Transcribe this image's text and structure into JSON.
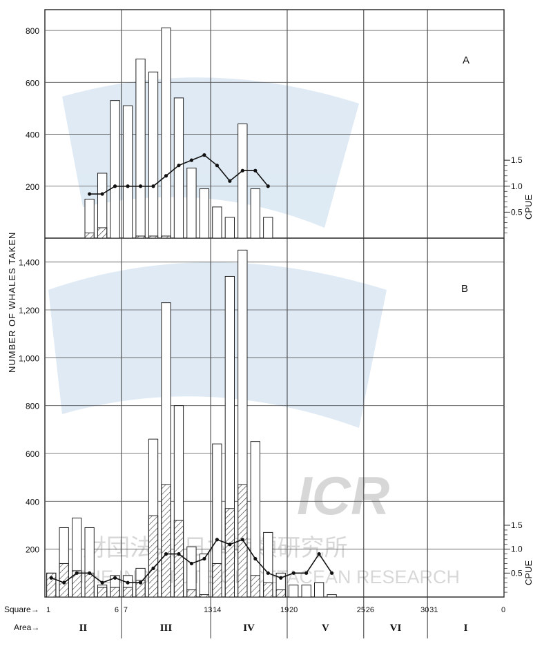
{
  "y_axis_label": "NUMBER OF WHALES TAKEN",
  "cpue_label": "CPUE",
  "square_label": "Square→",
  "area_label": "Area→",
  "watermark": {
    "logo_text": "ICR",
    "jp_text": "財団法人 日本鯨類研究所",
    "en_text": "THE INSTITUTE OF CETACEAN RESEARCH"
  },
  "chart_data": [
    {
      "type": "bar",
      "panel": "A",
      "squares": [
        1,
        2,
        3,
        4,
        5,
        6,
        7,
        8,
        9,
        10,
        11,
        12,
        13,
        14,
        15,
        16,
        17,
        18,
        19,
        20,
        21,
        22,
        23,
        24,
        25,
        26,
        27,
        28,
        29,
        30,
        31,
        32,
        33,
        34,
        35,
        36
      ],
      "series": [
        {
          "name": "total",
          "values": [
            0,
            0,
            0,
            150,
            250,
            530,
            510,
            690,
            640,
            810,
            540,
            270,
            190,
            120,
            80,
            440,
            190,
            80,
            0,
            0,
            0,
            0,
            0,
            0,
            0,
            0,
            0,
            0,
            0,
            0,
            0,
            0,
            0,
            0,
            0,
            0
          ]
        },
        {
          "name": "hatched",
          "values": [
            0,
            0,
            0,
            20,
            40,
            0,
            0,
            8,
            8,
            8,
            0,
            0,
            0,
            0,
            0,
            0,
            0,
            0,
            0,
            0,
            0,
            0,
            0,
            0,
            0,
            0,
            0,
            0,
            0,
            0,
            0,
            0,
            0,
            0,
            0,
            0
          ]
        }
      ],
      "cpue": [
        null,
        null,
        null,
        0.85,
        0.85,
        1.0,
        1.0,
        1.0,
        1.0,
        1.2,
        1.4,
        1.5,
        1.6,
        1.4,
        1.1,
        1.3,
        1.3,
        1.0,
        null,
        null,
        null,
        null,
        null,
        null,
        null,
        null,
        null,
        null,
        null,
        null,
        null,
        null,
        null,
        null,
        null,
        null
      ],
      "ylim": [
        0,
        880
      ],
      "yticks": [
        200,
        400,
        600,
        800
      ],
      "cpue_ticks": [
        "0.5",
        "1.0",
        "1.5"
      ]
    },
    {
      "type": "bar",
      "panel": "B",
      "squares": [
        1,
        2,
        3,
        4,
        5,
        6,
        7,
        8,
        9,
        10,
        11,
        12,
        13,
        14,
        15,
        16,
        17,
        18,
        19,
        20,
        21,
        22,
        23,
        24,
        25,
        26,
        27,
        28,
        29,
        30,
        31,
        32,
        33,
        34,
        35,
        36
      ],
      "series": [
        {
          "name": "total",
          "values": [
            100,
            290,
            330,
            290,
            50,
            90,
            90,
            120,
            660,
            1230,
            800,
            210,
            180,
            640,
            1340,
            1450,
            650,
            270,
            100,
            50,
            50,
            60,
            10,
            0,
            0,
            0,
            0,
            0,
            0,
            0,
            0,
            0,
            0,
            0,
            0,
            0
          ]
        },
        {
          "name": "hatched",
          "values": [
            100,
            140,
            110,
            100,
            40,
            40,
            40,
            70,
            340,
            470,
            320,
            30,
            10,
            140,
            370,
            470,
            90,
            60,
            30,
            0,
            0,
            0,
            0,
            0,
            0,
            0,
            0,
            0,
            0,
            0,
            0,
            0,
            0,
            0,
            0,
            0
          ]
        }
      ],
      "cpue": [
        0.4,
        0.3,
        0.5,
        0.5,
        0.3,
        0.4,
        0.3,
        0.3,
        0.6,
        0.9,
        0.9,
        0.7,
        0.8,
        1.2,
        1.1,
        1.2,
        0.8,
        0.5,
        0.4,
        0.5,
        0.5,
        0.9,
        0.5,
        null,
        null,
        null,
        null,
        null,
        null,
        null,
        null,
        null,
        null,
        null,
        null,
        null
      ],
      "ylim": [
        0,
        1500
      ],
      "yticks": [
        "200",
        "400",
        "600",
        "800",
        "1,000",
        "1,200",
        "1,400"
      ],
      "ytick_values": [
        200,
        400,
        600,
        800,
        1000,
        1200,
        1400
      ],
      "cpue_ticks": [
        "0.5",
        "1.0",
        "1.5"
      ]
    }
  ],
  "square_ticks": [
    {
      "square": 1,
      "label": "1"
    },
    {
      "square": 6,
      "label": "6"
    },
    {
      "square": 7,
      "label": "7"
    },
    {
      "square": 13,
      "label": "13"
    },
    {
      "square": 14,
      "label": "14"
    },
    {
      "square": 19,
      "label": "19"
    },
    {
      "square": 20,
      "label": "20"
    },
    {
      "square": 25,
      "label": "25"
    },
    {
      "square": 26,
      "label": "26"
    },
    {
      "square": 30,
      "label": "30"
    },
    {
      "square": 31,
      "label": "31"
    },
    {
      "square": 36,
      "label": "0"
    }
  ],
  "areas": [
    {
      "label": "II",
      "from": 1,
      "to": 6
    },
    {
      "label": "III",
      "from": 7,
      "to": 13
    },
    {
      "label": "IV",
      "from": 14,
      "to": 19
    },
    {
      "label": "V",
      "from": 20,
      "to": 25
    },
    {
      "label": "VI",
      "from": 26,
      "to": 30
    },
    {
      "label": "I",
      "from": 31,
      "to": 36
    }
  ]
}
